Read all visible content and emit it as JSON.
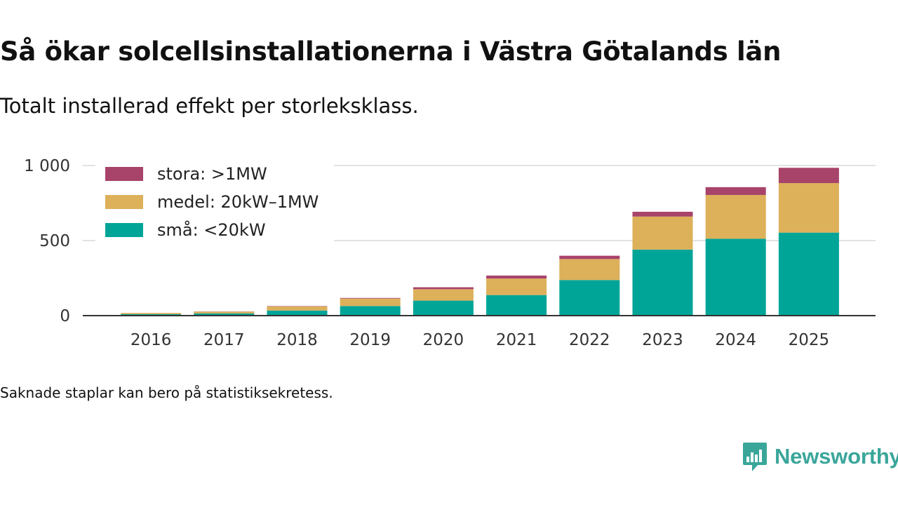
{
  "header": {
    "title": "Så ökar solcellsinstallationerna i Västra Götalands län",
    "subtitle": "Totalt installerad effekt per storleksklass."
  },
  "footnote": "Saknade staplar kan bero på statistiksekretess.",
  "brand": {
    "name": "Newsworthy",
    "color": "#3aa69a"
  },
  "chart_data": {
    "type": "bar",
    "stacked": true,
    "title": "Så ökar solcellsinstallationerna i Västra Götalands län",
    "subtitle": "Totalt installerad effekt per storleksklass.",
    "xlabel": "",
    "ylabel": "",
    "categories": [
      "2016",
      "2017",
      "2018",
      "2019",
      "2020",
      "2021",
      "2022",
      "2023",
      "2024",
      "2025"
    ],
    "series": [
      {
        "name": "små: <20kW",
        "color": "#00a598",
        "values": [
          10,
          15,
          34,
          64,
          100,
          137,
          237,
          440,
          512,
          553
        ]
      },
      {
        "name": "medel: 20kW–1MW",
        "color": "#ddb05a",
        "values": [
          8,
          12,
          28,
          50,
          76,
          110,
          140,
          220,
          292,
          330
        ]
      },
      {
        "name": "stora: >1MW",
        "color": "#a8436a",
        "values": [
          0,
          1,
          2,
          4,
          13,
          20,
          22,
          32,
          52,
          102
        ]
      }
    ],
    "ylim": [
      0,
      1000
    ],
    "yticks": [
      0,
      500,
      1000
    ],
    "ytick_labels": [
      "0",
      "500",
      "1 000"
    ],
    "grid": true,
    "legend": {
      "placement": "top-left",
      "order": [
        "stora: >1MW",
        "medel: 20kW–1MW",
        "små: <20kW"
      ]
    }
  }
}
